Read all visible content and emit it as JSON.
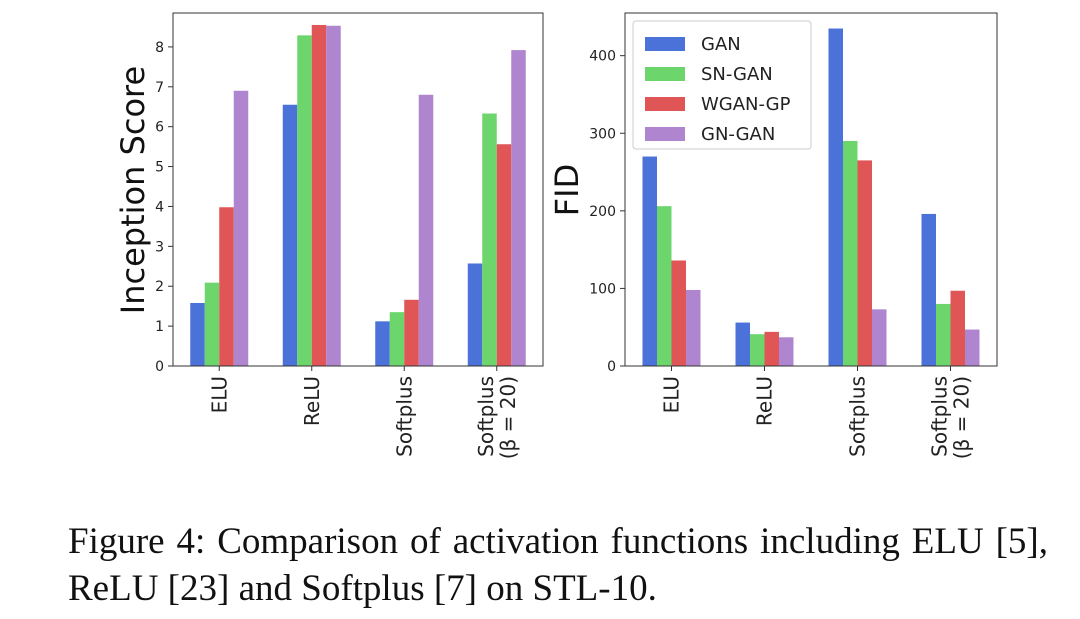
{
  "chart_data": [
    {
      "type": "bar",
      "ylabel": "Inception Score",
      "ylim": [
        0,
        8.85
      ],
      "yticks": [
        0,
        1,
        2,
        3,
        4,
        5,
        6,
        7,
        8
      ],
      "categories": [
        [
          "ELU"
        ],
        [
          "ReLU"
        ],
        [
          "Softplus"
        ],
        [
          "Softplus",
          "(β = 20)"
        ]
      ],
      "series": [
        {
          "name": "GAN",
          "color": "#4a72d9",
          "values": [
            1.58,
            6.55,
            1.12,
            2.57
          ]
        },
        {
          "name": "SN-GAN",
          "color": "#6cd66c",
          "values": [
            2.09,
            8.29,
            1.35,
            6.33
          ]
        },
        {
          "name": "WGAN-GP",
          "color": "#e05555",
          "values": [
            3.98,
            8.55,
            1.66,
            5.56
          ]
        },
        {
          "name": "GN-GAN",
          "color": "#b085d0",
          "values": [
            6.9,
            8.53,
            6.8,
            7.92
          ]
        }
      ],
      "legend": "none",
      "grid": false
    },
    {
      "type": "bar",
      "ylabel": "FID",
      "ylim": [
        0,
        455
      ],
      "yticks": [
        0,
        100,
        200,
        300,
        400
      ],
      "categories": [
        [
          "ELU"
        ],
        [
          "ReLU"
        ],
        [
          "Softplus"
        ],
        [
          "Softplus",
          "(β = 20)"
        ]
      ],
      "series": [
        {
          "name": "GAN",
          "color": "#4a72d9",
          "values": [
            270,
            56,
            435,
            196
          ]
        },
        {
          "name": "SN-GAN",
          "color": "#6cd66c",
          "values": [
            206,
            41,
            290,
            80
          ]
        },
        {
          "name": "WGAN-GP",
          "color": "#e05555",
          "values": [
            136,
            44,
            265,
            97
          ]
        },
        {
          "name": "GN-GAN",
          "color": "#b085d0",
          "values": [
            98,
            37,
            73,
            47
          ]
        }
      ],
      "legend": "top-left",
      "grid": false
    }
  ],
  "caption": "Figure 4:  Comparison of activation functions including ELU [5], ReLU [23] and Softplus [7] on STL-10."
}
